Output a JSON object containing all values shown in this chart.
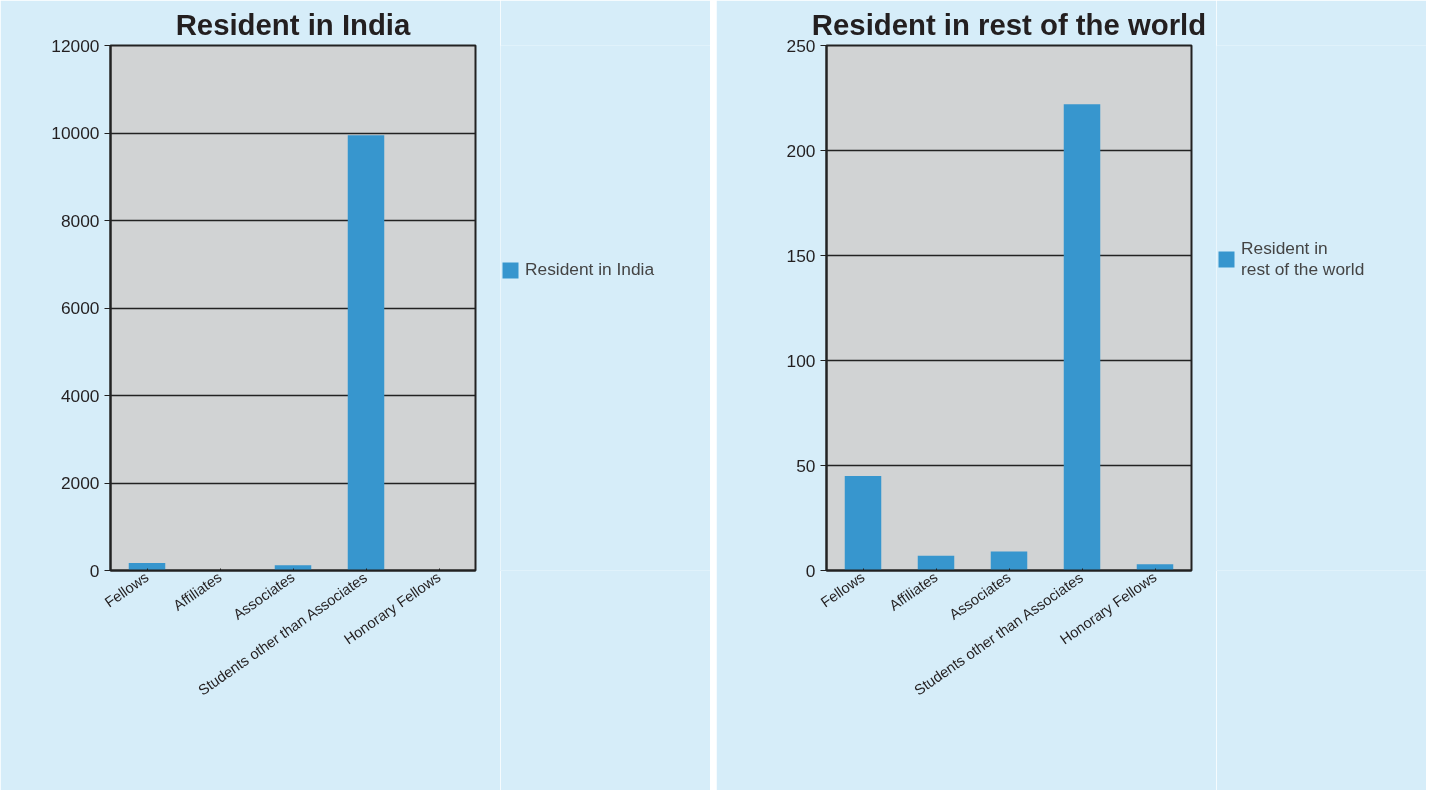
{
  "chart_data": [
    {
      "type": "bar",
      "title": "Resident in India",
      "categories": [
        "Fellows",
        "Affiliates",
        "Associates",
        "Students other than Associates",
        "Honorary Fellows"
      ],
      "series": [
        {
          "name": "Resident in India",
          "color": "#3796ce",
          "values": [
            170,
            0,
            120,
            9950,
            0
          ]
        }
      ],
      "ylim": [
        0,
        12000
      ],
      "yticks": [
        0,
        2000,
        4000,
        6000,
        8000,
        10000,
        12000
      ],
      "grid": "y",
      "legend": "right"
    },
    {
      "type": "bar",
      "title": "Resident in rest of the world",
      "categories": [
        "Fellows",
        "Affiliates",
        "Associates",
        "Students other than Associates",
        "Honorary Fellows"
      ],
      "series": [
        {
          "name": "Resident in\nrest of the world",
          "color": "#3796ce",
          "values": [
            45,
            7,
            9,
            222,
            3
          ]
        }
      ],
      "ylim": [
        0,
        250
      ],
      "yticks": [
        0,
        50,
        100,
        150,
        200,
        250
      ],
      "grid": "y",
      "legend": "right"
    }
  ]
}
